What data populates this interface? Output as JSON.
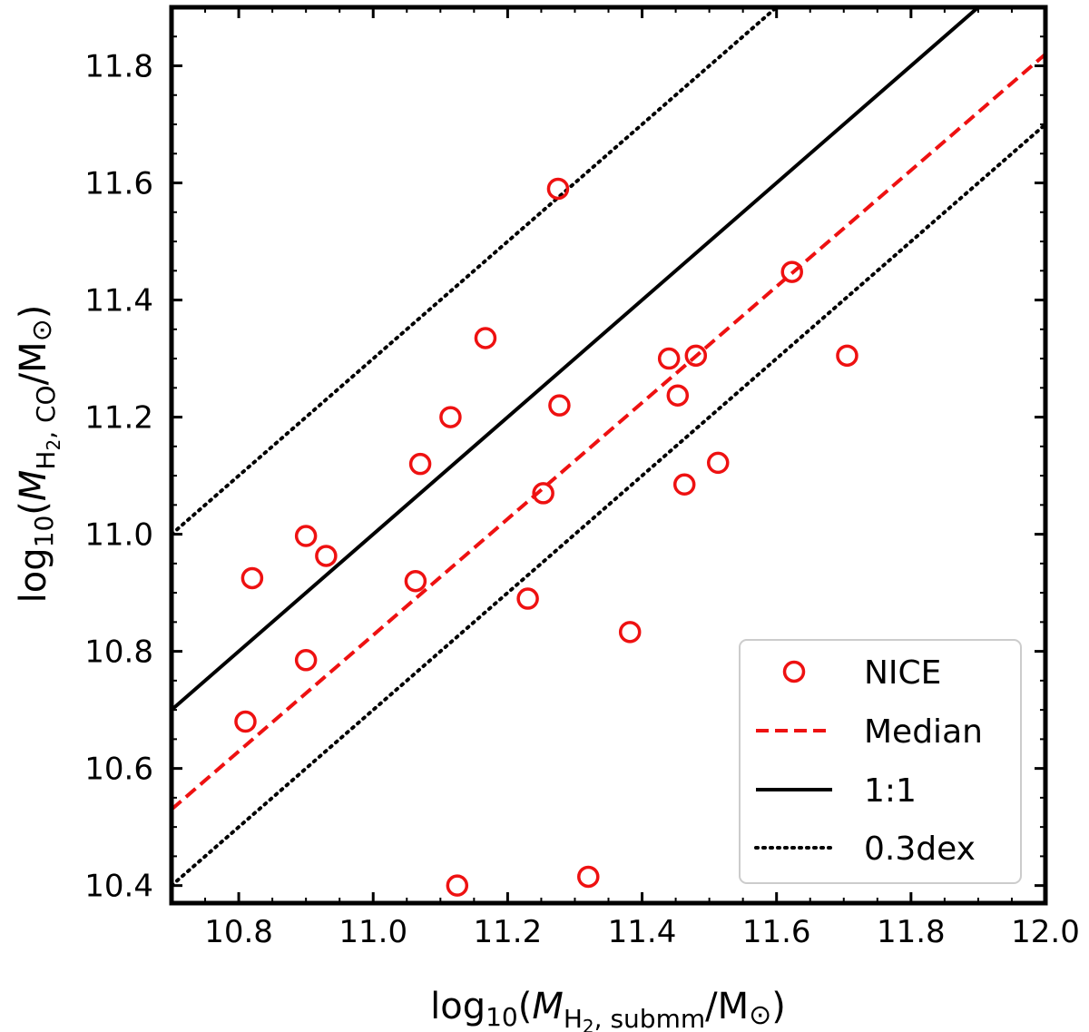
{
  "chart_data": {
    "type": "scatter",
    "xlim": [
      10.7,
      12.0
    ],
    "ylim": [
      10.37,
      11.9
    ],
    "x_ticks": [
      "10.8",
      "11.0",
      "11.2",
      "11.4",
      "11.6",
      "11.8",
      "12.0"
    ],
    "y_ticks": [
      "10.4",
      "10.6",
      "10.8",
      "11.0",
      "11.2",
      "11.4",
      "11.6",
      "11.8"
    ],
    "xlabel": {
      "prefix": "log",
      "sub10": "10",
      "open": "(",
      "var": "M",
      "sub": "H",
      "sub2": "2",
      "subrest": ", submm",
      "close": "/M",
      "sun": "⊙",
      "end": ")"
    },
    "ylabel": {
      "prefix": "log",
      "sub10": "10",
      "open": "(",
      "var": "M",
      "sub": "H",
      "sub2": "2",
      "subrest": ", CO",
      "close": "/M",
      "sun": "⊙",
      "end": ")"
    },
    "series": [
      {
        "name": "NICE",
        "marker": "circle-open",
        "color": "#ee1111",
        "points": [
          [
            10.81,
            10.68
          ],
          [
            10.82,
            10.925
          ],
          [
            10.9,
            10.785
          ],
          [
            10.9,
            10.997
          ],
          [
            10.93,
            10.963
          ],
          [
            11.063,
            10.92
          ],
          [
            11.07,
            11.12
          ],
          [
            11.115,
            11.2
          ],
          [
            11.125,
            10.4
          ],
          [
            11.167,
            11.335
          ],
          [
            11.23,
            10.89
          ],
          [
            11.253,
            11.07
          ],
          [
            11.275,
            11.59
          ],
          [
            11.277,
            11.22
          ],
          [
            11.32,
            10.415
          ],
          [
            11.382,
            10.833
          ],
          [
            11.44,
            11.3
          ],
          [
            11.453,
            11.237
          ],
          [
            11.463,
            11.085
          ],
          [
            11.48,
            11.305
          ],
          [
            11.513,
            11.122
          ],
          [
            11.623,
            11.448
          ],
          [
            11.705,
            11.305
          ]
        ]
      },
      {
        "name": "Median",
        "style": "dashed",
        "color": "#ee1111",
        "x": [
          10.7,
          12.0
        ],
        "y": [
          10.53,
          11.82
        ]
      },
      {
        "name": "1:1",
        "style": "solid",
        "color": "#000000",
        "x": [
          10.7,
          11.9
        ],
        "y": [
          10.7,
          11.9
        ]
      },
      {
        "name": "0.3dex",
        "style": "dotted",
        "color": "#000000",
        "x": [
          10.7,
          11.6
        ],
        "y": [
          11.0,
          11.9
        ],
        "x2": [
          10.7,
          12.0
        ],
        "y2": [
          10.4,
          11.7
        ]
      }
    ],
    "legend": {
      "position": "lower-right",
      "entries": [
        "NICE",
        "Median",
        "1:1",
        "0.3dex"
      ]
    }
  }
}
